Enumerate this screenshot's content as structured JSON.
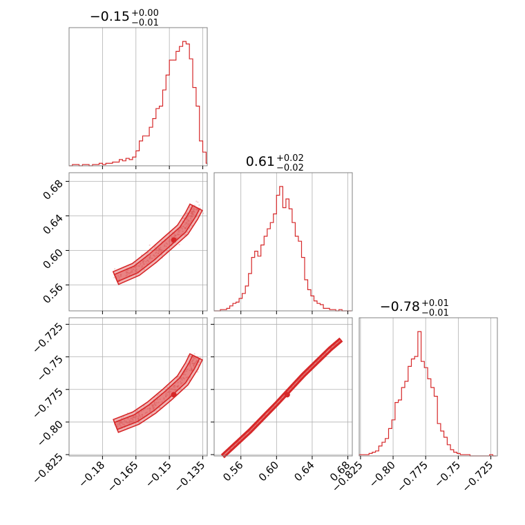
{
  "chart_data": [
    {
      "type": "histogram",
      "panel": "diag-0",
      "title": {
        "value": "−0.15",
        "upper": "+0.00",
        "lower": "−0.01"
      },
      "xlim": [
        -0.195,
        -0.133
      ],
      "xticks": [
        -0.18,
        -0.165,
        -0.15,
        -0.135
      ],
      "bins": [
        [
          -0.195,
          0.0
        ],
        [
          -0.1935,
          0.01
        ],
        [
          -0.192,
          0.01
        ],
        [
          -0.1905,
          0.0
        ],
        [
          -0.189,
          0.01
        ],
        [
          -0.1875,
          0.01
        ],
        [
          -0.186,
          0.0
        ],
        [
          -0.1845,
          0.01
        ],
        [
          -0.183,
          0.01
        ],
        [
          -0.1815,
          0.02
        ],
        [
          -0.18,
          0.01
        ],
        [
          -0.1785,
          0.02
        ],
        [
          -0.177,
          0.02
        ],
        [
          -0.1755,
          0.03
        ],
        [
          -0.174,
          0.03
        ],
        [
          -0.1725,
          0.05
        ],
        [
          -0.171,
          0.04
        ],
        [
          -0.1695,
          0.06
        ],
        [
          -0.168,
          0.05
        ],
        [
          -0.1665,
          0.07
        ],
        [
          -0.165,
          0.12
        ],
        [
          -0.1635,
          0.2
        ],
        [
          -0.162,
          0.24
        ],
        [
          -0.1605,
          0.24
        ],
        [
          -0.159,
          0.31
        ],
        [
          -0.1575,
          0.38
        ],
        [
          -0.156,
          0.46
        ],
        [
          -0.1545,
          0.48
        ],
        [
          -0.153,
          0.61
        ],
        [
          -0.1515,
          0.73
        ],
        [
          -0.15,
          0.85
        ],
        [
          -0.1485,
          0.85
        ],
        [
          -0.147,
          0.92
        ],
        [
          -0.1455,
          0.96
        ],
        [
          -0.144,
          1.0
        ],
        [
          -0.1425,
          0.98
        ],
        [
          -0.141,
          0.86
        ],
        [
          -0.1395,
          0.63
        ],
        [
          -0.138,
          0.48
        ],
        [
          -0.1365,
          0.2
        ],
        [
          -0.135,
          0.11
        ],
        [
          -0.1335,
          0.02
        ]
      ],
      "bin_width": 0.0015
    },
    {
      "type": "histogram",
      "panel": "diag-1",
      "title": {
        "value": "0.61",
        "upper": "+0.02",
        "lower": "−0.02"
      },
      "xlim": [
        0.53,
        0.685
      ],
      "xticks": [
        0.56,
        0.6,
        0.64,
        0.68
      ],
      "bins": [
        [
          0.53,
          0.0
        ],
        [
          0.5335,
          0.0
        ],
        [
          0.537,
          0.01
        ],
        [
          0.5405,
          0.01
        ],
        [
          0.544,
          0.02
        ],
        [
          0.5475,
          0.04
        ],
        [
          0.551,
          0.06
        ],
        [
          0.5545,
          0.07
        ],
        [
          0.558,
          0.1
        ],
        [
          0.5615,
          0.14
        ],
        [
          0.565,
          0.2
        ],
        [
          0.5685,
          0.3
        ],
        [
          0.572,
          0.43
        ],
        [
          0.5755,
          0.48
        ],
        [
          0.579,
          0.44
        ],
        [
          0.5825,
          0.53
        ],
        [
          0.586,
          0.6
        ],
        [
          0.5895,
          0.66
        ],
        [
          0.593,
          0.71
        ],
        [
          0.5965,
          0.78
        ],
        [
          0.6,
          0.93
        ],
        [
          0.6035,
          1.0
        ],
        [
          0.607,
          0.83
        ],
        [
          0.6105,
          0.9
        ],
        [
          0.614,
          0.82
        ],
        [
          0.6175,
          0.71
        ],
        [
          0.621,
          0.6
        ],
        [
          0.6245,
          0.56
        ],
        [
          0.628,
          0.43
        ],
        [
          0.6315,
          0.25
        ],
        [
          0.635,
          0.17
        ],
        [
          0.6385,
          0.12
        ],
        [
          0.642,
          0.08
        ],
        [
          0.6455,
          0.06
        ],
        [
          0.649,
          0.05
        ],
        [
          0.6525,
          0.02
        ],
        [
          0.656,
          0.02
        ],
        [
          0.6595,
          0.01
        ],
        [
          0.663,
          0.01
        ],
        [
          0.6665,
          0.0
        ],
        [
          0.67,
          0.01
        ],
        [
          0.6735,
          0.0
        ],
        [
          0.677,
          0.0
        ],
        [
          0.6805,
          0.0
        ]
      ],
      "bin_width": 0.0035
    },
    {
      "type": "histogram",
      "panel": "diag-2",
      "title": {
        "value": "−0.78",
        "upper": "+0.01",
        "lower": "−0.01"
      },
      "xlim": [
        -0.826,
        -0.72
      ],
      "xticks": [
        -0.825,
        -0.8,
        -0.775,
        -0.75,
        -0.725
      ],
      "bins": [
        [
          -0.826,
          0.01
        ],
        [
          -0.8235,
          0.01
        ],
        [
          -0.821,
          0.01
        ],
        [
          -0.8185,
          0.02
        ],
        [
          -0.816,
          0.03
        ],
        [
          -0.8135,
          0.04
        ],
        [
          -0.811,
          0.08
        ],
        [
          -0.8085,
          0.11
        ],
        [
          -0.806,
          0.14
        ],
        [
          -0.8035,
          0.22
        ],
        [
          -0.801,
          0.29
        ],
        [
          -0.7985,
          0.43
        ],
        [
          -0.796,
          0.45
        ],
        [
          -0.7935,
          0.55
        ],
        [
          -0.791,
          0.6
        ],
        [
          -0.7885,
          0.72
        ],
        [
          -0.786,
          0.78
        ],
        [
          -0.7835,
          0.8
        ],
        [
          -0.781,
          1.0
        ],
        [
          -0.7785,
          0.76
        ],
        [
          -0.776,
          0.71
        ],
        [
          -0.7735,
          0.62
        ],
        [
          -0.771,
          0.55
        ],
        [
          -0.7685,
          0.48
        ],
        [
          -0.766,
          0.26
        ],
        [
          -0.7635,
          0.2
        ],
        [
          -0.761,
          0.15
        ],
        [
          -0.7585,
          0.09
        ],
        [
          -0.756,
          0.05
        ],
        [
          -0.7535,
          0.03
        ],
        [
          -0.751,
          0.02
        ],
        [
          -0.7485,
          0.01
        ],
        [
          -0.746,
          0.01
        ],
        [
          -0.7435,
          0.01
        ],
        [
          -0.741,
          0.0
        ],
        [
          -0.7385,
          0.0
        ],
        [
          -0.736,
          0.0
        ],
        [
          -0.7335,
          0.0
        ],
        [
          -0.731,
          0.0
        ],
        [
          -0.7285,
          0.0
        ],
        [
          -0.726,
          0.01
        ],
        [
          -0.7235,
          0.0
        ]
      ],
      "bin_width": 0.0025
    },
    {
      "type": "scatter-contour",
      "panel": "joint-1-0",
      "x_param": 0,
      "y_param": 1,
      "xlim": [
        -0.195,
        -0.133
      ],
      "ylim": [
        0.53,
        0.69
      ],
      "yticks": [
        0.56,
        0.6,
        0.64,
        0.68
      ],
      "center": [
        -0.148,
        0.612
      ],
      "density_line": [
        [
          -0.174,
          0.568
        ],
        [
          -0.165,
          0.578
        ],
        [
          -0.158,
          0.592
        ],
        [
          -0.151,
          0.608
        ],
        [
          -0.144,
          0.624
        ],
        [
          -0.14,
          0.64
        ],
        [
          -0.138,
          0.65
        ]
      ]
    },
    {
      "type": "scatter-contour",
      "panel": "joint-2-0",
      "x_param": 0,
      "y_param": 2,
      "xlim": [
        -0.195,
        -0.133
      ],
      "ylim": [
        -0.826,
        -0.72
      ],
      "yticks": [
        -0.825,
        -0.8,
        -0.775,
        -0.75,
        -0.725
      ],
      "center": [
        -0.148,
        -0.779
      ],
      "density_line": [
        [
          -0.174,
          -0.803
        ],
        [
          -0.165,
          -0.797
        ],
        [
          -0.158,
          -0.789
        ],
        [
          -0.151,
          -0.779
        ],
        [
          -0.144,
          -0.768
        ],
        [
          -0.14,
          -0.757
        ],
        [
          -0.138,
          -0.75
        ]
      ]
    },
    {
      "type": "scatter-contour",
      "panel": "joint-2-1",
      "x_param": 1,
      "y_param": 2,
      "xlim": [
        0.53,
        0.685
      ],
      "ylim": [
        -0.826,
        -0.72
      ],
      "center": [
        0.612,
        -0.779
      ],
      "density_line": [
        [
          0.54,
          -0.826
        ],
        [
          0.57,
          -0.807
        ],
        [
          0.6,
          -0.786
        ],
        [
          0.63,
          -0.764
        ],
        [
          0.66,
          -0.744
        ],
        [
          0.672,
          -0.737
        ]
      ]
    }
  ],
  "colors": {
    "accent": "#d62728",
    "accent_light": "#e8a3a4",
    "grid": "#b0b0b0",
    "frame": "#808080"
  }
}
